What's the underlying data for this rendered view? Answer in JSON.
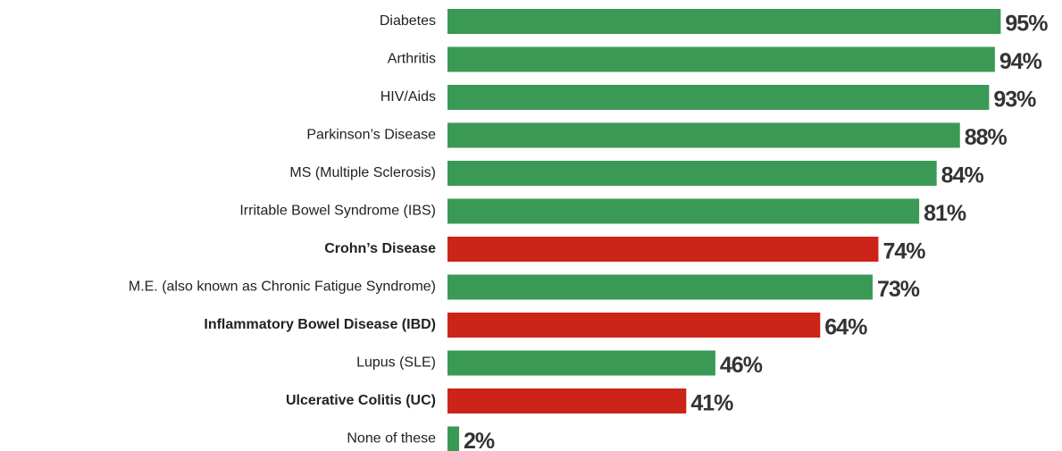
{
  "chart_data": {
    "type": "barh",
    "categories": [
      "Diabetes",
      "Arthritis",
      "HIV/Aids",
      "Parkinson’s Disease",
      "MS (Multiple Sclerosis)",
      "Irritable Bowel Syndrome (IBS)",
      "Crohn’s Disease",
      "M.E. (also known as Chronic Fatigue Syndrome)",
      "Inflammatory Bowel Disease (IBD)",
      "Lupus (SLE)",
      "Ulcerative Colitis (UC)",
      "None of these"
    ],
    "values": [
      95,
      94,
      93,
      88,
      84,
      81,
      74,
      73,
      64,
      46,
      41,
      2
    ],
    "value_labels": [
      "95%",
      "94%",
      "93%",
      "88%",
      "84%",
      "81%",
      "74%",
      "73%",
      "64%",
      "46%",
      "41%",
      "2%"
    ],
    "color": "#3a9a55",
    "highlight_color": "#cc2418",
    "colors": [
      "#3a9a55",
      "#3a9a55",
      "#3a9a55",
      "#3a9a55",
      "#3a9a55",
      "#3a9a55",
      "#cc2418",
      "#3a9a55",
      "#cc2418",
      "#3a9a55",
      "#cc2418",
      "#3a9a55"
    ],
    "xlim": [
      0,
      100
    ]
  }
}
